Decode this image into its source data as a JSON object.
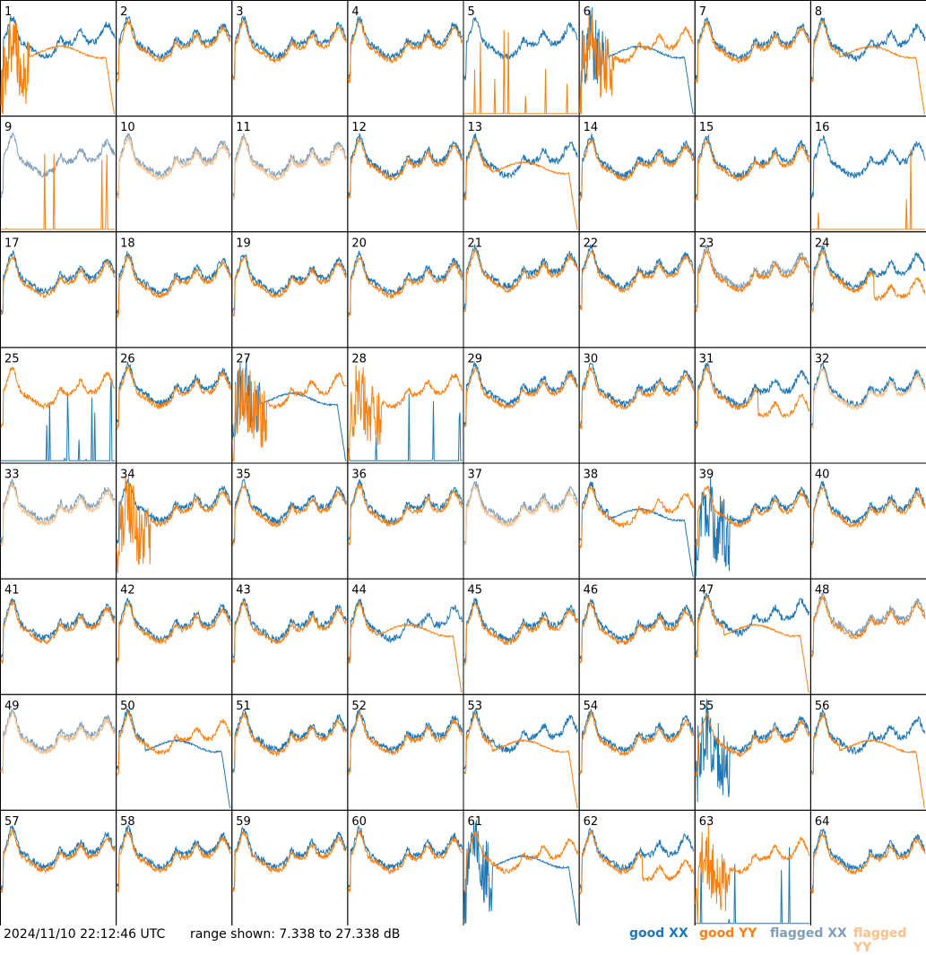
{
  "chart_data": {
    "type": "line",
    "layout": "small-multiples",
    "panel_count": 64,
    "panel_labels": [
      "1",
      "2",
      "3",
      "4",
      "5",
      "6",
      "7",
      "8",
      "9",
      "10",
      "11",
      "12",
      "13",
      "14",
      "15",
      "16",
      "17",
      "18",
      "19",
      "20",
      "21",
      "22",
      "23",
      "24",
      "25",
      "26",
      "27",
      "28",
      "29",
      "30",
      "31",
      "32",
      "33",
      "34",
      "35",
      "36",
      "37",
      "38",
      "39",
      "40",
      "41",
      "42",
      "43",
      "44",
      "45",
      "46",
      "47",
      "48",
      "49",
      "50",
      "51",
      "52",
      "53",
      "54",
      "55",
      "56",
      "57",
      "58",
      "59",
      "60",
      "61",
      "62",
      "63",
      "64"
    ],
    "ylim": [
      7.338,
      27.338
    ],
    "y_unit": "dB",
    "series": [
      {
        "name": "good XX",
        "color": "#1f77b4"
      },
      {
        "name": "good YY",
        "color": "#ff7f0e"
      },
      {
        "name": "flagged XX",
        "color": "#7f9fb8"
      },
      {
        "name": "flagged YY",
        "color": "#ffbf87"
      }
    ],
    "panel_states": {
      "xx_flagged": [
        9,
        10,
        11,
        23,
        33,
        37,
        48,
        49
      ],
      "yy_flagged": [
        10,
        11,
        32,
        33,
        37,
        49
      ],
      "xx_dead": [
        25,
        28,
        63
      ],
      "yy_dead": [
        5,
        9,
        16
      ],
      "yy_noisy": [
        1,
        6,
        27,
        28,
        34,
        63
      ],
      "xx_noisy": [
        6,
        27,
        39,
        55,
        61
      ],
      "xx_drops_right": [
        6,
        27,
        38,
        50,
        61
      ],
      "yy_drops_right": [
        1,
        8,
        13,
        44,
        47,
        53,
        56
      ],
      "yy_low_tail": [
        24,
        31,
        62
      ]
    }
  },
  "footer": {
    "timestamp": "2024/11/10 22:12:46 UTC",
    "range_text": "range shown: 7.338 to 27.338 dB",
    "legend": [
      {
        "label": "good XX",
        "color": "#1f77b4"
      },
      {
        "label": "good YY",
        "color": "#ff7f0e"
      },
      {
        "label": "flagged XX",
        "color": "#7f9fb8"
      },
      {
        "label": "flagged YY",
        "color": "#ffbf87"
      }
    ]
  }
}
